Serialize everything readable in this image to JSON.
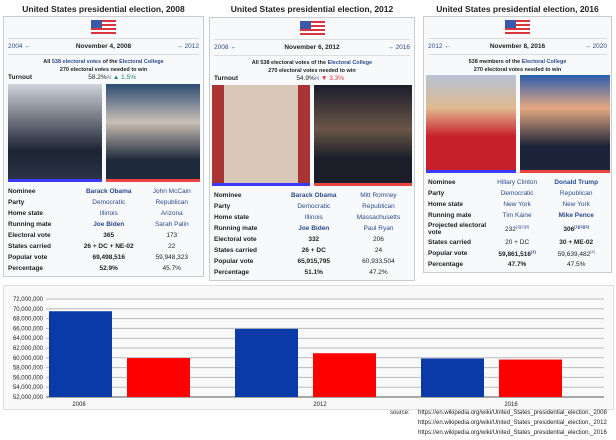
{
  "panels": [
    {
      "title": "United States presidential election, 2008",
      "prev": "2004 ←",
      "date": "November 4, 2008",
      "next": "→ 2012",
      "ev_line1": [
        "All ",
        "538 electoral votes",
        " of the ",
        "Electoral College"
      ],
      "ev_line2": "270 electoral votes needed to win",
      "turnout": {
        "label": "Turnout",
        "value": "58.2%",
        "sup": "[1]",
        "change": "▲ 1.5%",
        "change_color": "#14866d"
      },
      "photos": [
        {
          "name": "Barack Obama photo",
          "bg": "linear-gradient(#cfd3da,#1d2433 70%,#2a3244)"
        },
        {
          "name": "John McCain photo",
          "bg": "linear-gradient(#2d4d72,#c9bfb4 40%,#1f2a3c 80%)"
        }
      ],
      "rows": [
        [
          "Nominee",
          "Barack Obama",
          "John McCain",
          "bl",
          "lk"
        ],
        [
          "Party",
          "Democratic",
          "Republican",
          "lk",
          "lk"
        ],
        [
          "Home state",
          "Illinois",
          "Arizona",
          "lk",
          "lk"
        ],
        [
          "Running mate",
          "Joe Biden",
          "Sarah Palin",
          "bl",
          "lk"
        ],
        [
          "Electoral vote",
          "365",
          "173",
          "b",
          ""
        ],
        [
          "States carried",
          "26 + DC + NE-02",
          "22",
          "b",
          ""
        ],
        [
          "Popular vote",
          "69,498,516",
          "59,948,323",
          "b",
          ""
        ],
        [
          "Percentage",
          "52.9%",
          "45.7%",
          "b",
          ""
        ]
      ]
    },
    {
      "title": "United States presidential election, 2012",
      "prev": "2008 ←",
      "date": "November 6, 2012",
      "next": "→ 2016",
      "ev_line1": [
        "All 538 electoral votes of the ",
        "",
        "",
        "Electoral College"
      ],
      "ev_line2": "270 electoral votes needed to win",
      "turnout": {
        "label": "Turnout",
        "value": "54.9%",
        "sup": "[1]",
        "change": "▼ 3.3%",
        "change_color": "#d33"
      },
      "photos": [
        {
          "name": "Barack Obama photo",
          "bg": "linear-gradient(90deg,#a33 0 12%,#d9c8b8 12% 88%,#a33 88%)"
        },
        {
          "name": "Mitt Romney photo",
          "bg": "linear-gradient(#1a1d2a,#6a5548 45%,#1b1e28 75%)"
        }
      ],
      "rows": [
        [
          "Nominee",
          "Barack Obama",
          "Mitt Romney",
          "bl",
          "lk"
        ],
        [
          "Party",
          "Democratic",
          "Republican",
          "lk",
          "lk"
        ],
        [
          "Home state",
          "Illinois",
          "Massachusetts",
          "lk",
          "lk"
        ],
        [
          "Running mate",
          "Joe Biden",
          "Paul Ryan",
          "bl",
          "lk"
        ],
        [
          "Electoral vote",
          "332",
          "206",
          "b",
          ""
        ],
        [
          "States carried",
          "26 + DC",
          "24",
          "b",
          ""
        ],
        [
          "Popular vote",
          "65,915,795",
          "60,933,504",
          "b",
          ""
        ],
        [
          "Percentage",
          "51.1%",
          "47.2%",
          "b",
          ""
        ]
      ]
    },
    {
      "title": "United States presidential election, 2016",
      "prev": "2012 ←",
      "date": "November 8, 2016",
      "next": "→ 2020",
      "ev_line1": [
        "538 members of the ",
        "",
        "",
        "Electoral College"
      ],
      "ev_line2": "270 electoral votes needed to win",
      "photos": [
        {
          "name": "Hillary Clinton photo",
          "bg": "linear-gradient(#b7c3d6,#e0b98f 35%,#c8202a 65%)"
        },
        {
          "name": "Donald Trump photo",
          "bg": "linear-gradient(#2b5fae,#e6a882 35%,#1b2438 75%)"
        }
      ],
      "rows": [
        [
          "Nominee",
          "Hillary Clinton",
          "Donald Trump",
          "lk",
          "bl"
        ],
        [
          "Party",
          "Democratic",
          "Republican",
          "lk",
          "lk"
        ],
        [
          "Home state",
          "New York",
          "New York",
          "lk",
          "lk"
        ],
        [
          "Running mate",
          "Tim Kaine",
          "Mike Pence",
          "lk",
          "bl"
        ],
        [
          "Projected electoral vote",
          "232",
          "306",
          "",
          "b",
          "[1][2][3]",
          "[1][2][3]"
        ],
        [
          "States carried",
          "20 + DC",
          "30 + ME-02",
          "",
          "b"
        ],
        [
          "Popular vote",
          "59,861,516",
          "59,639,482",
          "b",
          "",
          "[4]",
          "[4]"
        ],
        [
          "Percentage",
          "47.7%",
          "47.5%",
          "b",
          ""
        ]
      ]
    }
  ],
  "colors": {
    "dem": "#0a3aa8",
    "rep": "#ff0000",
    "dem_bar": "#3b3bff",
    "rep_bar": "#ee4444"
  },
  "chart_data": {
    "type": "bar",
    "categories": [
      "2008",
      "2012",
      "2016"
    ],
    "series": [
      {
        "name": "Democratic",
        "values": [
          69498516,
          65915795,
          59861516
        ]
      },
      {
        "name": "Republican",
        "values": [
          59948323,
          60933504,
          59639482
        ]
      }
    ],
    "ylim": [
      52000000,
      72000000
    ],
    "yticks": [
      "72,000,000",
      "70,000,000",
      "68,000,000",
      "66,000,000",
      "64,000,000",
      "62,000,000",
      "60,000,000",
      "58,000,000",
      "56,000,000",
      "54,000,000",
      "52,000,000"
    ],
    "grid": true
  },
  "source": {
    "label": "source:",
    "urls": [
      "https://en.wikipedia.org/wiki/United_States_presidential_election,_2008",
      "https://en.wikipedia.org/wiki/United_States_presidential_election,_2012",
      "https://en.wikipedia.org/wiki/United_States_presidential_election,_2016"
    ]
  }
}
